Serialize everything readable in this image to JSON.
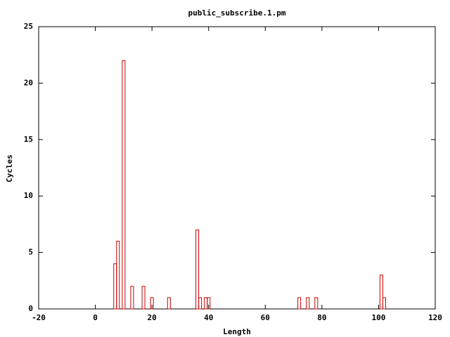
{
  "chart_data": {
    "type": "bar",
    "title": "public_subscribe.1.pm",
    "x_label": "Length",
    "y_label": "Cycles",
    "x": [
      7,
      8,
      10,
      13,
      17,
      20,
      26,
      36,
      37,
      39,
      40,
      72,
      75,
      78,
      101,
      102
    ],
    "values": [
      4,
      6,
      22,
      2,
      2,
      1,
      1,
      7,
      1,
      1,
      1,
      1,
      1,
      1,
      3,
      1
    ],
    "color": "#cc0000",
    "xlim": [
      -20,
      120
    ],
    "xticks": [
      -20,
      0,
      20,
      40,
      60,
      80,
      100,
      120
    ],
    "ylim": [
      0,
      25
    ],
    "yticks": [
      0,
      5,
      10,
      15,
      20,
      25
    ]
  }
}
